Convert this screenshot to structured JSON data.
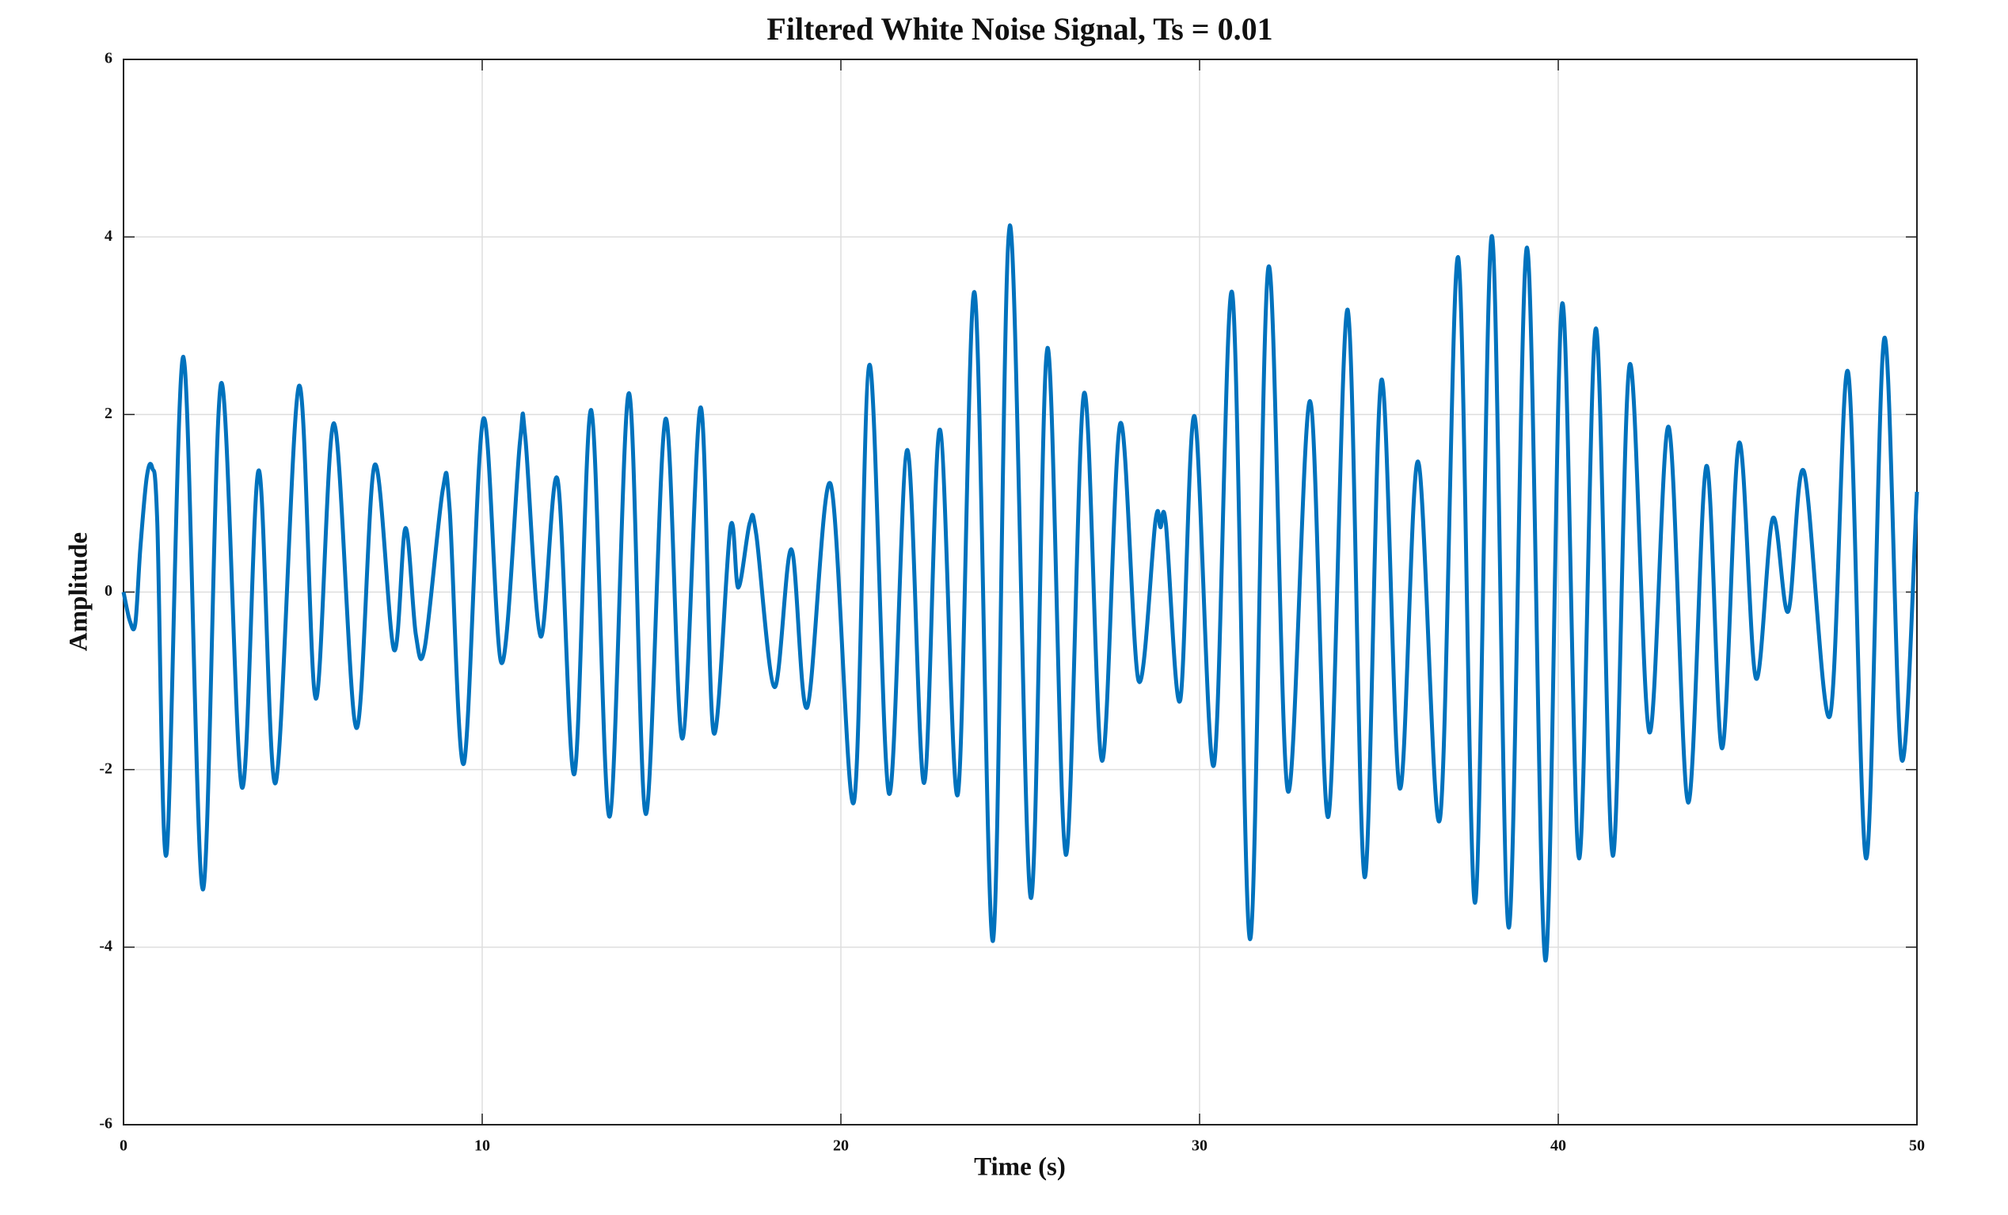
{
  "chart_data": {
    "type": "line",
    "title": "Filtered White Noise Signal, Ts = 0.01",
    "xlabel": "Time (s)",
    "ylabel": "Amplitude",
    "xlim": [
      0,
      50
    ],
    "ylim": [
      -6,
      6
    ],
    "xticks": [
      0,
      10,
      20,
      30,
      40,
      50
    ],
    "yticks": [
      -6,
      -4,
      -2,
      0,
      2,
      4,
      6
    ],
    "grid": true,
    "series": [
      {
        "color": "#0072BD",
        "x": [
          0,
          0.18,
          0.33,
          0.47,
          0.65,
          0.8,
          0.94,
          1.2,
          1.67,
          2.21,
          2.72,
          3.3,
          3.77,
          4.24,
          4.89,
          5.36,
          5.87,
          6.49,
          7.0,
          7.54,
          7.86,
          8.15,
          8.4,
          8.9,
          9.09,
          9.49,
          10.03,
          10.54,
          11.05,
          11.2,
          11.63,
          12.1,
          12.57,
          13.04,
          13.55,
          14.09,
          14.56,
          15.11,
          15.58,
          16.09,
          16.45,
          16.92,
          17.14,
          17.46,
          17.64,
          18.15,
          18.62,
          19.06,
          19.71,
          20.36,
          20.8,
          21.34,
          21.85,
          22.32,
          22.76,
          23.26,
          23.73,
          24.24,
          24.71,
          25.29,
          25.76,
          26.27,
          26.78,
          27.28,
          27.79,
          28.3,
          28.77,
          28.91,
          29.06,
          29.46,
          29.86,
          30.4,
          30.91,
          31.41,
          31.92,
          32.46,
          33.08,
          33.59,
          34.13,
          34.6,
          35.07,
          35.58,
          36.09,
          36.7,
          37.21,
          37.68,
          38.15,
          38.62,
          39.13,
          39.64,
          40.11,
          40.58,
          41.05,
          41.52,
          41.99,
          42.54,
          43.08,
          43.62,
          44.13,
          44.57,
          45.04,
          45.51,
          45.98,
          46.41,
          46.85,
          47.57,
          48.08,
          48.59,
          49.09,
          49.57,
          50
        ],
        "values": [
          0,
          -0.33,
          -0.35,
          0.5,
          1.3,
          1.4,
          0.8,
          -2.95,
          2.65,
          -3.35,
          2.35,
          -2.2,
          1.37,
          -2.15,
          2.32,
          -1.2,
          1.9,
          -1.53,
          1.43,
          -0.65,
          0.72,
          -0.48,
          -0.62,
          1.15,
          0.95,
          -1.93,
          1.95,
          -0.8,
          1.68,
          1.75,
          -0.5,
          1.27,
          -2.05,
          2.05,
          -2.53,
          2.24,
          -2.5,
          1.95,
          -1.65,
          2.08,
          -1.58,
          0.73,
          0.05,
          0.78,
          0.65,
          -1.07,
          0.48,
          -1.3,
          1.22,
          -2.37,
          2.56,
          -2.27,
          1.6,
          -2.15,
          1.83,
          -2.28,
          3.37,
          -3.93,
          4.13,
          -3.44,
          2.75,
          -2.96,
          2.24,
          -1.9,
          1.9,
          -1.0,
          0.8,
          0.73,
          0.77,
          -1.22,
          1.98,
          -1.95,
          3.37,
          -3.91,
          3.66,
          -2.24,
          2.15,
          -2.53,
          3.18,
          -3.21,
          2.39,
          -2.21,
          1.47,
          -2.56,
          3.77,
          -3.5,
          4.01,
          -3.78,
          3.88,
          -4.15,
          3.25,
          -3.0,
          2.97,
          -2.97,
          2.56,
          -1.58,
          1.86,
          -2.37,
          1.42,
          -1.76,
          1.68,
          -0.97,
          0.83,
          -0.22,
          1.36,
          -1.4,
          2.48,
          -3.0,
          2.86,
          -1.88,
          1.13
        ]
      }
    ]
  }
}
